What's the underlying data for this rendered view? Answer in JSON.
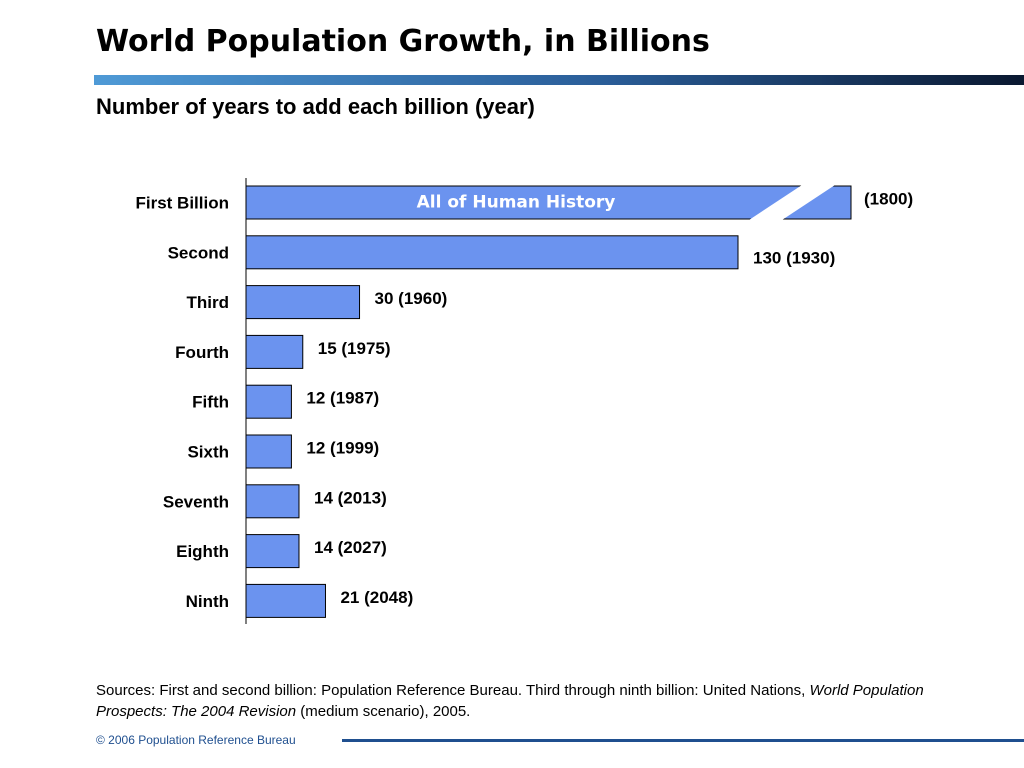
{
  "title": "World Population Growth, in Billions",
  "subtitle": "Number of years to add each billion (year)",
  "sources": {
    "text1": "Sources: First and second billion: Population Reference Bureau. Third through ninth billion: United Nations, ",
    "italic": "World Population Prospects: The 2004 Revision",
    "text2": " (medium scenario), 2005."
  },
  "footer": "© 2006 Population Reference Bureau",
  "colors": {
    "bar_fill": "#6b93ef",
    "bar_stroke": "#000000",
    "rule_start": "#4f9ad6",
    "rule_end": "#0a1830",
    "footer": "#1f4f8f"
  },
  "chart_data": {
    "type": "bar",
    "orientation": "horizontal",
    "categories": [
      "First Billion",
      "Second",
      "Third",
      "Fourth",
      "Fifth",
      "Sixth",
      "Seventh",
      "Eighth",
      "Ninth"
    ],
    "values": [
      null,
      130,
      30,
      15,
      12,
      12,
      14,
      14,
      21
    ],
    "labels": [
      "(1800)",
      "130 (1930)",
      "30 (1960)",
      "15 (1975)",
      "12 (1987)",
      "12 (1999)",
      "14 (2013)",
      "14 (2027)",
      "21 (2048)"
    ],
    "first_bar_text": "All of Human History",
    "first_bar_broken": true,
    "xlim": [
      0,
      160
    ],
    "grid": false
  }
}
